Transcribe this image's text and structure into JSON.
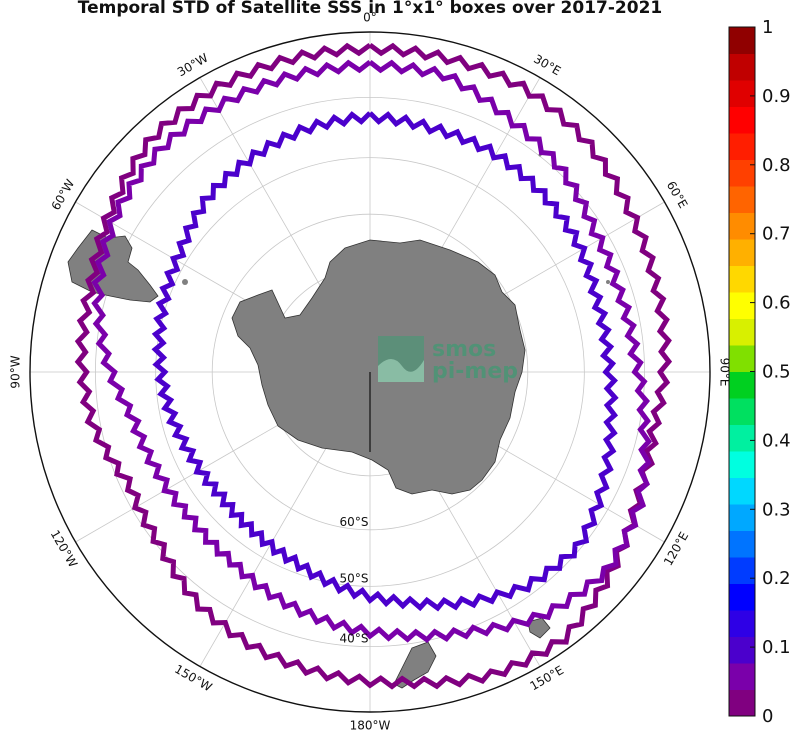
{
  "title": "Temporal STD of Satellite SSS in 1°x1° boxes over 2017-2021",
  "map": {
    "projection": "south-polar-stereographic",
    "ocean_color": "#ffffff",
    "land_color": "#808080",
    "grid_color": "#c8c8c8",
    "meridian_labels": [
      {
        "text": "0°",
        "lon": 0
      },
      {
        "text": "30°E",
        "lon": 30
      },
      {
        "text": "60°E",
        "lon": 60
      },
      {
        "text": "90°E",
        "lon": 90
      },
      {
        "text": "120°E",
        "lon": 120
      },
      {
        "text": "150°E",
        "lon": 150
      },
      {
        "text": "180°W",
        "lon": 180
      },
      {
        "text": "150°W",
        "lon": -150
      },
      {
        "text": "120°W",
        "lon": -120
      },
      {
        "text": "90°W",
        "lon": -90
      },
      {
        "text": "60°W",
        "lon": -60
      },
      {
        "text": "30°W",
        "lon": -30
      }
    ],
    "parallel_labels": [
      {
        "text": "60°S",
        "lat": -60
      },
      {
        "text": "50°S",
        "lat": -50
      },
      {
        "text": "40°S",
        "lat": -40
      }
    ],
    "fronts": [
      {
        "name": "outer-front",
        "std_level": 0.03,
        "radii": [
          0.95,
          0.95,
          0.95,
          0.93,
          0.9,
          0.88,
          0.87,
          0.85,
          0.87,
          0.92,
          0.97,
          0.96,
          0.92,
          0.9,
          0.88,
          0.85,
          0.8,
          0.78,
          0.83,
          0.85,
          0.86,
          0.9,
          0.94,
          0.95,
          0.95,
          0.95
        ]
      },
      {
        "name": "middle-front",
        "std_level": 0.05,
        "radii": [
          0.9,
          0.9,
          0.85,
          0.82,
          0.78,
          0.77,
          0.78,
          0.82,
          0.88,
          0.91,
          0.88,
          0.82,
          0.78,
          0.75,
          0.72,
          0.69,
          0.68,
          0.69,
          0.71,
          0.78,
          0.84,
          0.88,
          0.9,
          0.9,
          0.9,
          0.9
        ]
      },
      {
        "name": "inner-front",
        "std_level": 0.08,
        "radii": [
          0.75,
          0.74,
          0.74,
          0.73,
          0.72,
          0.7,
          0.7,
          0.72,
          0.76,
          0.8,
          0.78,
          0.73,
          0.68,
          0.64,
          0.6,
          0.58,
          0.57,
          0.58,
          0.6,
          0.62,
          0.64,
          0.66,
          0.7,
          0.72,
          0.74,
          0.75
        ]
      }
    ],
    "logo": {
      "line1": "smos",
      "line2": "pi-mep",
      "color": "#3e9a72"
    }
  },
  "colorbar": {
    "min": 0,
    "max": 1,
    "ticks": [
      "0",
      "0.1",
      "0.2",
      "0.3",
      "0.4",
      "0.5",
      "0.6",
      "0.7",
      "0.8",
      "0.9",
      "1"
    ],
    "colors": [
      "#800080",
      "#7a00aa",
      "#4b00cc",
      "#2e00e6",
      "#0000ff",
      "#003cff",
      "#0074ff",
      "#00a8ff",
      "#00d8ff",
      "#00ffe0",
      "#00f0a0",
      "#00e060",
      "#00d020",
      "#80e000",
      "#d8f000",
      "#ffff00",
      "#ffd800",
      "#ffb000",
      "#ff8c00",
      "#ff6400",
      "#ff4000",
      "#ff1e00",
      "#ff0000",
      "#e00000",
      "#c00000",
      "#900000"
    ]
  }
}
